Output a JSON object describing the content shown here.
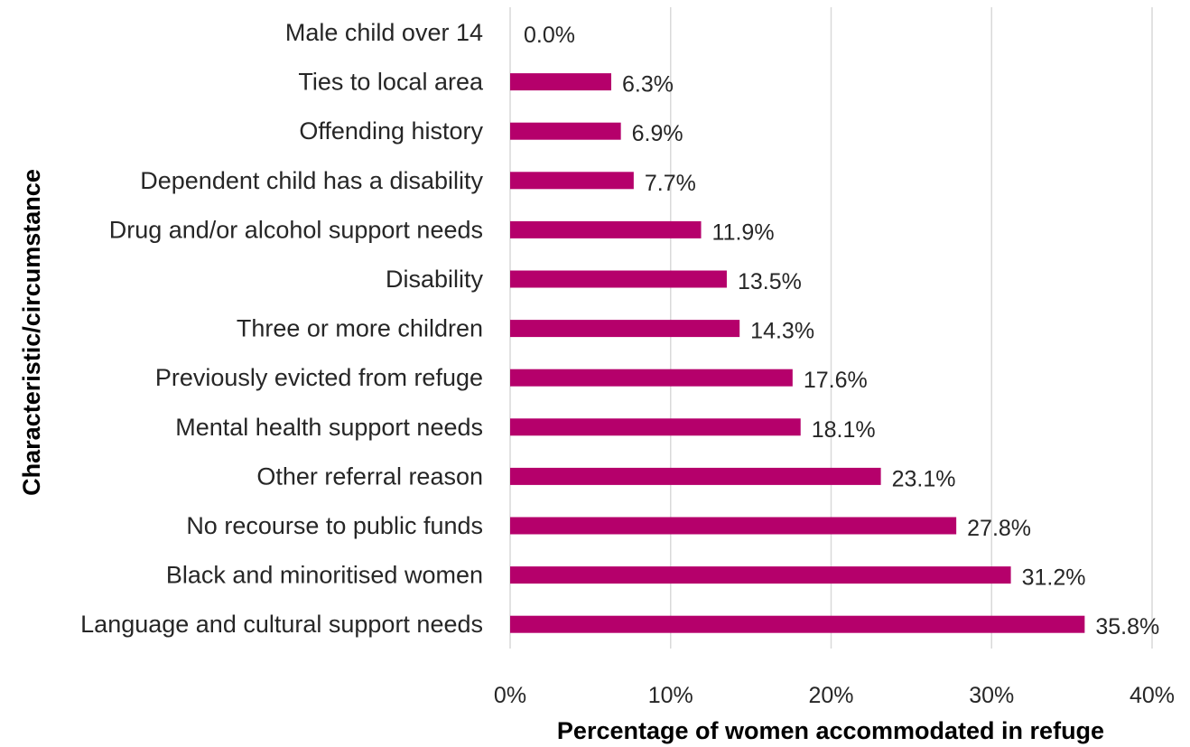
{
  "chart_data": {
    "type": "bar",
    "orientation": "horizontal",
    "categories": [
      "Male child over 14",
      "Ties to local area",
      "Offending history",
      "Dependent child has a disability",
      "Drug and/or alcohol support needs",
      "Disability",
      "Three or more children",
      "Previously evicted from refuge",
      "Mental health support needs",
      "Other referral reason",
      "No recourse to public funds",
      "Black and minoritised women",
      "Language and cultural support needs"
    ],
    "values": [
      0.0,
      6.3,
      6.9,
      7.7,
      11.9,
      13.5,
      14.3,
      17.6,
      18.1,
      23.1,
      27.8,
      31.2,
      35.8
    ],
    "value_labels": [
      "0.0%",
      "6.3%",
      "6.9%",
      "7.7%",
      "11.9%",
      "13.5%",
      "14.3%",
      "17.6%",
      "18.1%",
      "23.1%",
      "27.8%",
      "31.2%",
      "35.8%"
    ],
    "xlabel": "Percentage of women accommodated in refuge",
    "ylabel": "Characteristic/circumstance",
    "xlim": [
      0,
      40
    ],
    "xticks": [
      "0%",
      "10%",
      "20%",
      "30%",
      "40%"
    ],
    "grid": "vertical",
    "legend": "none",
    "bar_color": "#b5006b",
    "text_color": "#262626",
    "grid_color": "#d9d9d9"
  }
}
